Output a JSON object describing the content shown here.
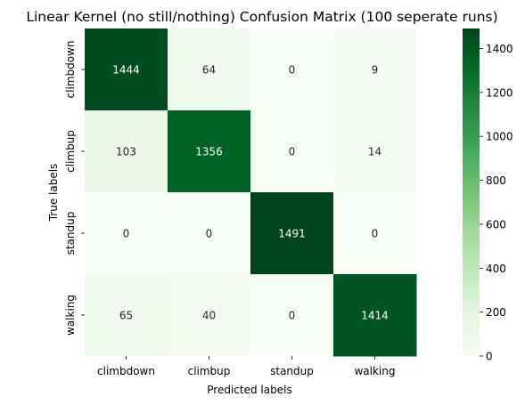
{
  "chart_data": {
    "type": "heatmap",
    "title": "Linear Kernel (no still/nothing) Confusion Matrix (100 seperate runs)",
    "xlabel": "Predicted labels",
    "ylabel": "True labels",
    "x_categories": [
      "climbdown",
      "climbup",
      "standup",
      "walking"
    ],
    "y_categories": [
      "climbdown",
      "climbup",
      "standup",
      "walking"
    ],
    "values": [
      [
        1444,
        64,
        0,
        9
      ],
      [
        103,
        1356,
        0,
        14
      ],
      [
        0,
        0,
        1491,
        0
      ],
      [
        65,
        40,
        0,
        1414
      ]
    ],
    "colorbar": {
      "min": 0,
      "max": 1491,
      "ticks": [
        0,
        200,
        400,
        600,
        800,
        1000,
        1200,
        1400
      ]
    },
    "colormap": "Greens",
    "colors": {
      "low": "#f7fcf5",
      "high": "#00441b"
    },
    "grid": false
  }
}
